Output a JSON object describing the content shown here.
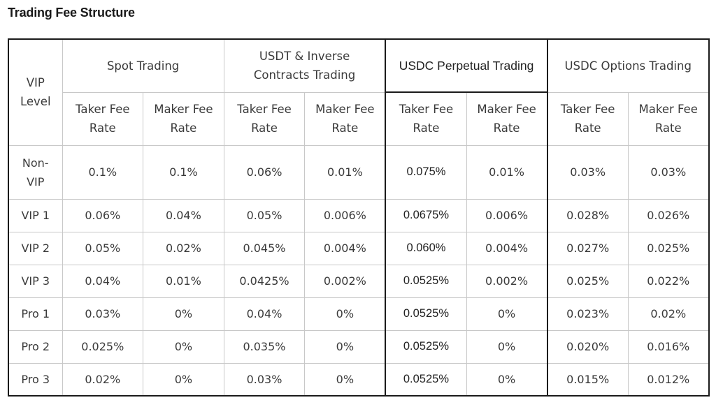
{
  "title": "Trading Fee Structure",
  "table": {
    "vip_level_header": "VIP Level",
    "groups": [
      {
        "label": "Spot Trading"
      },
      {
        "label": "USDT & Inverse Contracts Trading"
      },
      {
        "label": "USDC Perpetual Trading"
      },
      {
        "label": "USDC Options Trading"
      }
    ],
    "subheaders": {
      "taker": "Taker Fee Rate",
      "maker": "Maker Fee Rate"
    },
    "rows": [
      {
        "level": "Non-VIP",
        "values": [
          "0.1%",
          "0.1%",
          "0.06%",
          "0.01%",
          "0.075%",
          "0.01%",
          "0.03%",
          "0.03%"
        ]
      },
      {
        "level": "VIP 1",
        "values": [
          "0.06%",
          "0.04%",
          "0.05%",
          "0.006%",
          "0.0675%",
          "0.006%",
          "0.028%",
          "0.026%"
        ]
      },
      {
        "level": "VIP 2",
        "values": [
          "0.05%",
          "0.02%",
          "0.045%",
          "0.004%",
          "0.060%",
          "0.004%",
          "0.027%",
          "0.025%"
        ]
      },
      {
        "level": "VIP 3",
        "values": [
          "0.04%",
          "0.01%",
          "0.0425%",
          "0.002%",
          "0.0525%",
          "0.002%",
          "0.025%",
          "0.022%"
        ]
      },
      {
        "level": "Pro 1",
        "values": [
          "0.03%",
          "0%",
          "0.04%",
          "0%",
          "0.0525%",
          "0%",
          "0.023%",
          "0.02%"
        ]
      },
      {
        "level": "Pro 2",
        "values": [
          "0.025%",
          "0%",
          "0.035%",
          "0%",
          "0.0525%",
          "0%",
          "0.020%",
          "0.016%"
        ]
      },
      {
        "level": "Pro 3",
        "values": [
          "0.02%",
          "0%",
          "0.03%",
          "0%",
          "0.0525%",
          "0%",
          "0.015%",
          "0.012%"
        ]
      }
    ]
  }
}
